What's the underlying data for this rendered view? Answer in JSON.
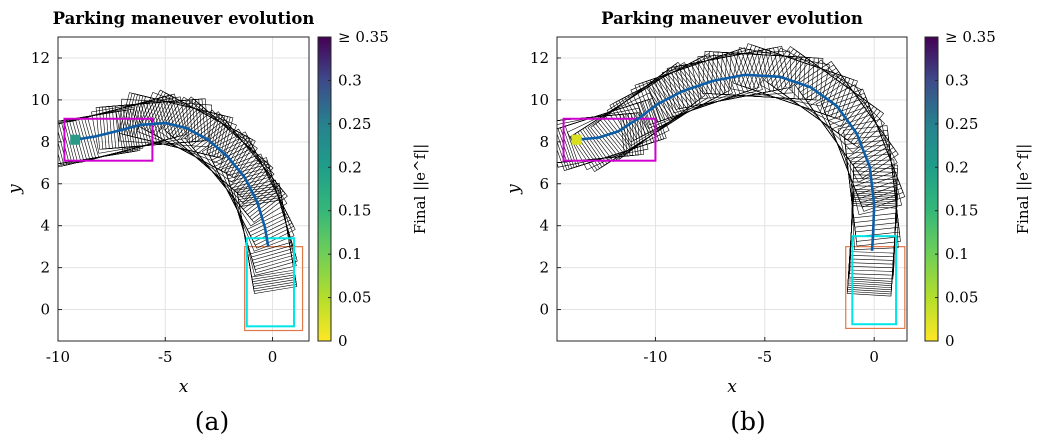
{
  "chart_data": [
    {
      "type": "line",
      "panel_label": "(a)",
      "title": "Parking maneuver evolution",
      "xlabel": "x",
      "ylabel": "y",
      "xlim": [
        -10,
        1.7
      ],
      "ylim": [
        -1.5,
        13
      ],
      "x_ticks": [
        "-10",
        "-5",
        "0"
      ],
      "y_ticks": [
        "0",
        "2",
        "4",
        "6",
        "8",
        "10",
        "12"
      ],
      "grid": true,
      "colorbar": {
        "label": "Final ||e^f||",
        "ticks": [
          "0",
          "0.05",
          "0.1",
          "0.15",
          "0.2",
          "0.25",
          "0.3",
          "≥ 0.35"
        ],
        "range": [
          0,
          0.35
        ],
        "colormap": "viridis (reversed)"
      },
      "start_marker": {
        "x": -9.2,
        "y": 8.1,
        "color": "#2a9a86"
      },
      "start_box": {
        "x": [
          -9.7,
          -5.6
        ],
        "y": [
          7.1,
          9.1
        ],
        "color": "#d000d0"
      },
      "goal_box": {
        "x": [
          -1.2,
          1.0
        ],
        "y": [
          -0.8,
          3.4
        ],
        "color": "#00e5e5"
      },
      "parking_slot": {
        "x": [
          -1.3,
          1.4
        ],
        "y": [
          -1.0,
          3.0
        ],
        "color": "#e07848"
      },
      "path_color": "#0d5ea8",
      "path": [
        [
          -9.2,
          8.1
        ],
        [
          -8.3,
          8.25
        ],
        [
          -7.3,
          8.5
        ],
        [
          -6.2,
          8.8
        ],
        [
          -5.0,
          8.9
        ],
        [
          -4.0,
          8.65
        ],
        [
          -3.0,
          8.1
        ],
        [
          -2.1,
          7.3
        ],
        [
          -1.3,
          6.3
        ],
        [
          -0.7,
          5.1
        ],
        [
          -0.35,
          3.9
        ],
        [
          -0.2,
          3.0
        ]
      ]
    },
    {
      "type": "line",
      "panel_label": "(b)",
      "title": "Parking maneuver evolution",
      "xlabel": "x",
      "ylabel": "y",
      "xlim": [
        -14.5,
        1.5
      ],
      "ylim": [
        -1.5,
        13
      ],
      "x_ticks": [
        "-10",
        "-5",
        "0"
      ],
      "y_ticks": [
        "0",
        "2",
        "4",
        "6",
        "8",
        "10",
        "12"
      ],
      "grid": true,
      "colorbar": {
        "label": "Final ||e^f||",
        "ticks": [
          "0",
          "0.05",
          "0.1",
          "0.15",
          "0.2",
          "0.25",
          "0.3",
          "≥ 0.35"
        ],
        "range": [
          0,
          0.35
        ],
        "colormap": "viridis (reversed)"
      },
      "start_marker": {
        "x": -13.6,
        "y": 8.1,
        "color": "#d8e020"
      },
      "start_box": {
        "x": [
          -14.2,
          -10.0
        ],
        "y": [
          7.1,
          9.1
        ],
        "color": "#d000d0"
      },
      "goal_box": {
        "x": [
          -1.0,
          1.0
        ],
        "y": [
          -0.7,
          3.5
        ],
        "color": "#00e5e5"
      },
      "parking_slot": {
        "x": [
          -1.3,
          1.4
        ],
        "y": [
          -0.9,
          3.0
        ],
        "color": "#e07848"
      },
      "path_color": "#0d5ea8",
      "path": [
        [
          -13.6,
          8.1
        ],
        [
          -12.6,
          8.2
        ],
        [
          -11.7,
          8.5
        ],
        [
          -10.8,
          9.1
        ],
        [
          -9.9,
          9.8
        ],
        [
          -8.8,
          10.4
        ],
        [
          -7.4,
          10.9
        ],
        [
          -5.9,
          11.2
        ],
        [
          -4.3,
          11.1
        ],
        [
          -2.9,
          10.6
        ],
        [
          -1.7,
          9.7
        ],
        [
          -0.8,
          8.4
        ],
        [
          -0.2,
          6.8
        ],
        [
          0.0,
          5.0
        ],
        [
          -0.05,
          3.6
        ],
        [
          -0.1,
          2.8
        ]
      ]
    }
  ]
}
